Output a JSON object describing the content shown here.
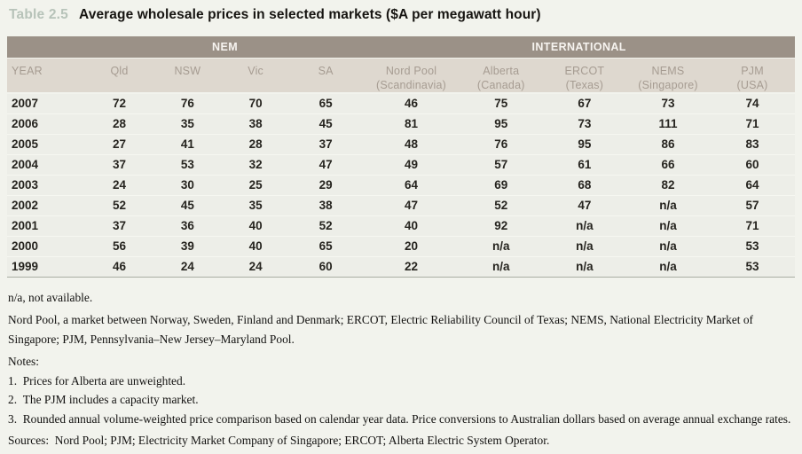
{
  "title": {
    "label": "Table 2.5",
    "text": "Average wholesale prices in selected markets ($A per megawatt hour)"
  },
  "table": {
    "groups": [
      {
        "label": "NEM",
        "span": 4
      },
      {
        "label": "INTERNATIONAL",
        "span": 5
      }
    ],
    "columns": [
      "YEAR",
      "Qld",
      "NSW",
      "Vic",
      "SA",
      "Nord Pool\n(Scandinavia)",
      "Alberta\n(Canada)",
      "ERCOT\n(Texas)",
      "NEMS\n(Singapore)",
      "PJM\n(USA)"
    ],
    "rows": [
      {
        "year": "2007",
        "values": [
          "72",
          "76",
          "70",
          "65",
          "46",
          "75",
          "67",
          "73",
          "74"
        ]
      },
      {
        "year": "2006",
        "values": [
          "28",
          "35",
          "38",
          "45",
          "81",
          "95",
          "73",
          "111",
          "71"
        ]
      },
      {
        "year": "2005",
        "values": [
          "27",
          "41",
          "28",
          "37",
          "48",
          "76",
          "95",
          "86",
          "83"
        ]
      },
      {
        "year": "2004",
        "values": [
          "37",
          "53",
          "32",
          "47",
          "49",
          "57",
          "61",
          "66",
          "60"
        ]
      },
      {
        "year": "2003",
        "values": [
          "24",
          "30",
          "25",
          "29",
          "64",
          "69",
          "68",
          "82",
          "64"
        ]
      },
      {
        "year": "2002",
        "values": [
          "52",
          "45",
          "35",
          "38",
          "47",
          "52",
          "47",
          "n/a",
          "57"
        ]
      },
      {
        "year": "2001",
        "values": [
          "37",
          "36",
          "40",
          "52",
          "40",
          "92",
          "n/a",
          "n/a",
          "71"
        ]
      },
      {
        "year": "2000",
        "values": [
          "56",
          "39",
          "40",
          "65",
          "20",
          "n/a",
          "n/a",
          "n/a",
          "53"
        ]
      },
      {
        "year": "1999",
        "values": [
          "46",
          "24",
          "24",
          "60",
          "22",
          "n/a",
          "n/a",
          "n/a",
          "53"
        ]
      }
    ]
  },
  "footnotes": {
    "na": "n/a, not available.",
    "abbreviations": "Nord Pool, a market between Norway, Sweden, Finland and Denmark; ERCOT, Electric Reliability Council of Texas; NEMS, National Electricity Market of Singapore; PJM, Pennsylvania–New Jersey–Maryland Pool.",
    "notes_heading": "Notes:",
    "notes": [
      "1. Prices for Alberta are unweighted.",
      "2. The PJM includes a capacity market.",
      "3. Rounded annual volume-weighted price comparison based on calendar year data. Price conversions to Australian dollars based on average annual exchange rates."
    ],
    "sources": "Sources: Nord Pool; PJM; Electricity Market Company of Singapore; ERCOT; Alberta Electric System Operator."
  },
  "colors": {
    "page_bg": "#f2f3ed",
    "group_header_bg": "#9b9187",
    "group_header_text": "#f7f4f0",
    "subheader_bg": "#ded8cf",
    "subheader_text": "#a69c92",
    "row_bg": "#edeee8",
    "row_divider": "#f6f7f1",
    "table_bottom_border": "#a9aea3",
    "title_label_color": "#b7c3b9",
    "text_color": "#26241f"
  }
}
